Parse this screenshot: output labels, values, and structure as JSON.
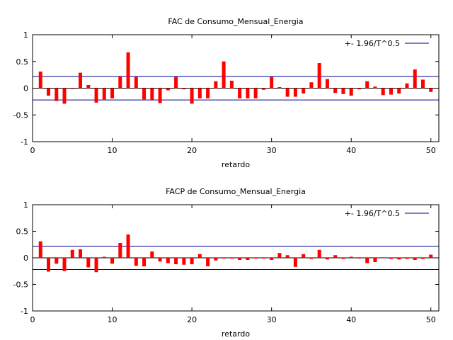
{
  "chart_data": [
    {
      "type": "bar",
      "title": "FAC de Consumo_Mensual_Energia",
      "xlabel": "retardo",
      "ylabel": "",
      "xlim": [
        0,
        51
      ],
      "ylim": [
        -1,
        1
      ],
      "xticks": [
        "0",
        "10",
        "20",
        "30",
        "40",
        "50"
      ],
      "yticks": [
        "-1",
        "-0.5",
        "0",
        "0.5",
        "1"
      ],
      "legend": {
        "label": "+- 1.96/T^0.5",
        "position": "top-right"
      },
      "bound": 0.22,
      "colors": {
        "bars": "#ff0000",
        "bound": "#00008b"
      },
      "x": [
        1,
        2,
        3,
        4,
        5,
        6,
        7,
        8,
        9,
        10,
        11,
        12,
        13,
        14,
        15,
        16,
        17,
        18,
        19,
        20,
        21,
        22,
        23,
        24,
        25,
        26,
        27,
        28,
        29,
        30,
        31,
        32,
        33,
        34,
        35,
        36,
        37,
        38,
        39,
        40,
        41,
        42,
        43,
        44,
        45,
        46,
        47,
        48,
        49,
        50
      ],
      "values": [
        0.31,
        -0.14,
        -0.24,
        -0.29,
        -0.01,
        0.29,
        0.06,
        -0.27,
        -0.21,
        -0.19,
        0.22,
        0.67,
        0.21,
        -0.21,
        -0.22,
        -0.28,
        -0.04,
        0.21,
        -0.02,
        -0.29,
        -0.19,
        -0.19,
        0.13,
        0.5,
        0.14,
        -0.19,
        -0.19,
        -0.19,
        -0.03,
        0.21,
        0.02,
        -0.16,
        -0.16,
        -0.1,
        0.11,
        0.47,
        0.17,
        -0.09,
        -0.11,
        -0.14,
        -0.02,
        0.13,
        0.03,
        -0.13,
        -0.12,
        -0.1,
        0.09,
        0.35,
        0.16,
        -0.07
      ]
    },
    {
      "type": "bar",
      "title": "FACP de Consumo_Mensual_Energia",
      "xlabel": "retardo",
      "ylabel": "",
      "xlim": [
        0,
        51
      ],
      "ylim": [
        -1,
        1
      ],
      "xticks": [
        "0",
        "10",
        "20",
        "30",
        "40",
        "50"
      ],
      "yticks": [
        "-1",
        "-0.5",
        "0",
        "0.5",
        "1"
      ],
      "legend": {
        "label": "+- 1.96/T^0.5",
        "position": "top-right"
      },
      "bound": 0.22,
      "colors": {
        "bars": "#ff0000",
        "bound": "#00008b"
      },
      "x": [
        1,
        2,
        3,
        4,
        5,
        6,
        7,
        8,
        9,
        10,
        11,
        12,
        13,
        14,
        15,
        16,
        17,
        18,
        19,
        20,
        21,
        22,
        23,
        24,
        25,
        26,
        27,
        28,
        29,
        30,
        31,
        32,
        33,
        34,
        35,
        36,
        37,
        38,
        39,
        40,
        41,
        42,
        43,
        44,
        45,
        46,
        47,
        48,
        49,
        50
      ],
      "values": [
        0.31,
        -0.26,
        -0.11,
        -0.25,
        0.15,
        0.16,
        -0.18,
        -0.27,
        0.02,
        -0.11,
        0.28,
        0.44,
        -0.15,
        -0.16,
        0.12,
        -0.07,
        -0.1,
        -0.12,
        -0.13,
        -0.12,
        0.07,
        -0.16,
        -0.05,
        -0.01,
        -0.01,
        -0.04,
        -0.04,
        -0.01,
        -0.01,
        -0.04,
        0.09,
        0.05,
        -0.17,
        0.07,
        -0.02,
        0.15,
        -0.03,
        0.05,
        -0.02,
        0.02,
        -0.01,
        -0.1,
        -0.08,
        0.01,
        -0.02,
        -0.03,
        -0.02,
        -0.04,
        -0.02,
        0.06
      ]
    }
  ]
}
